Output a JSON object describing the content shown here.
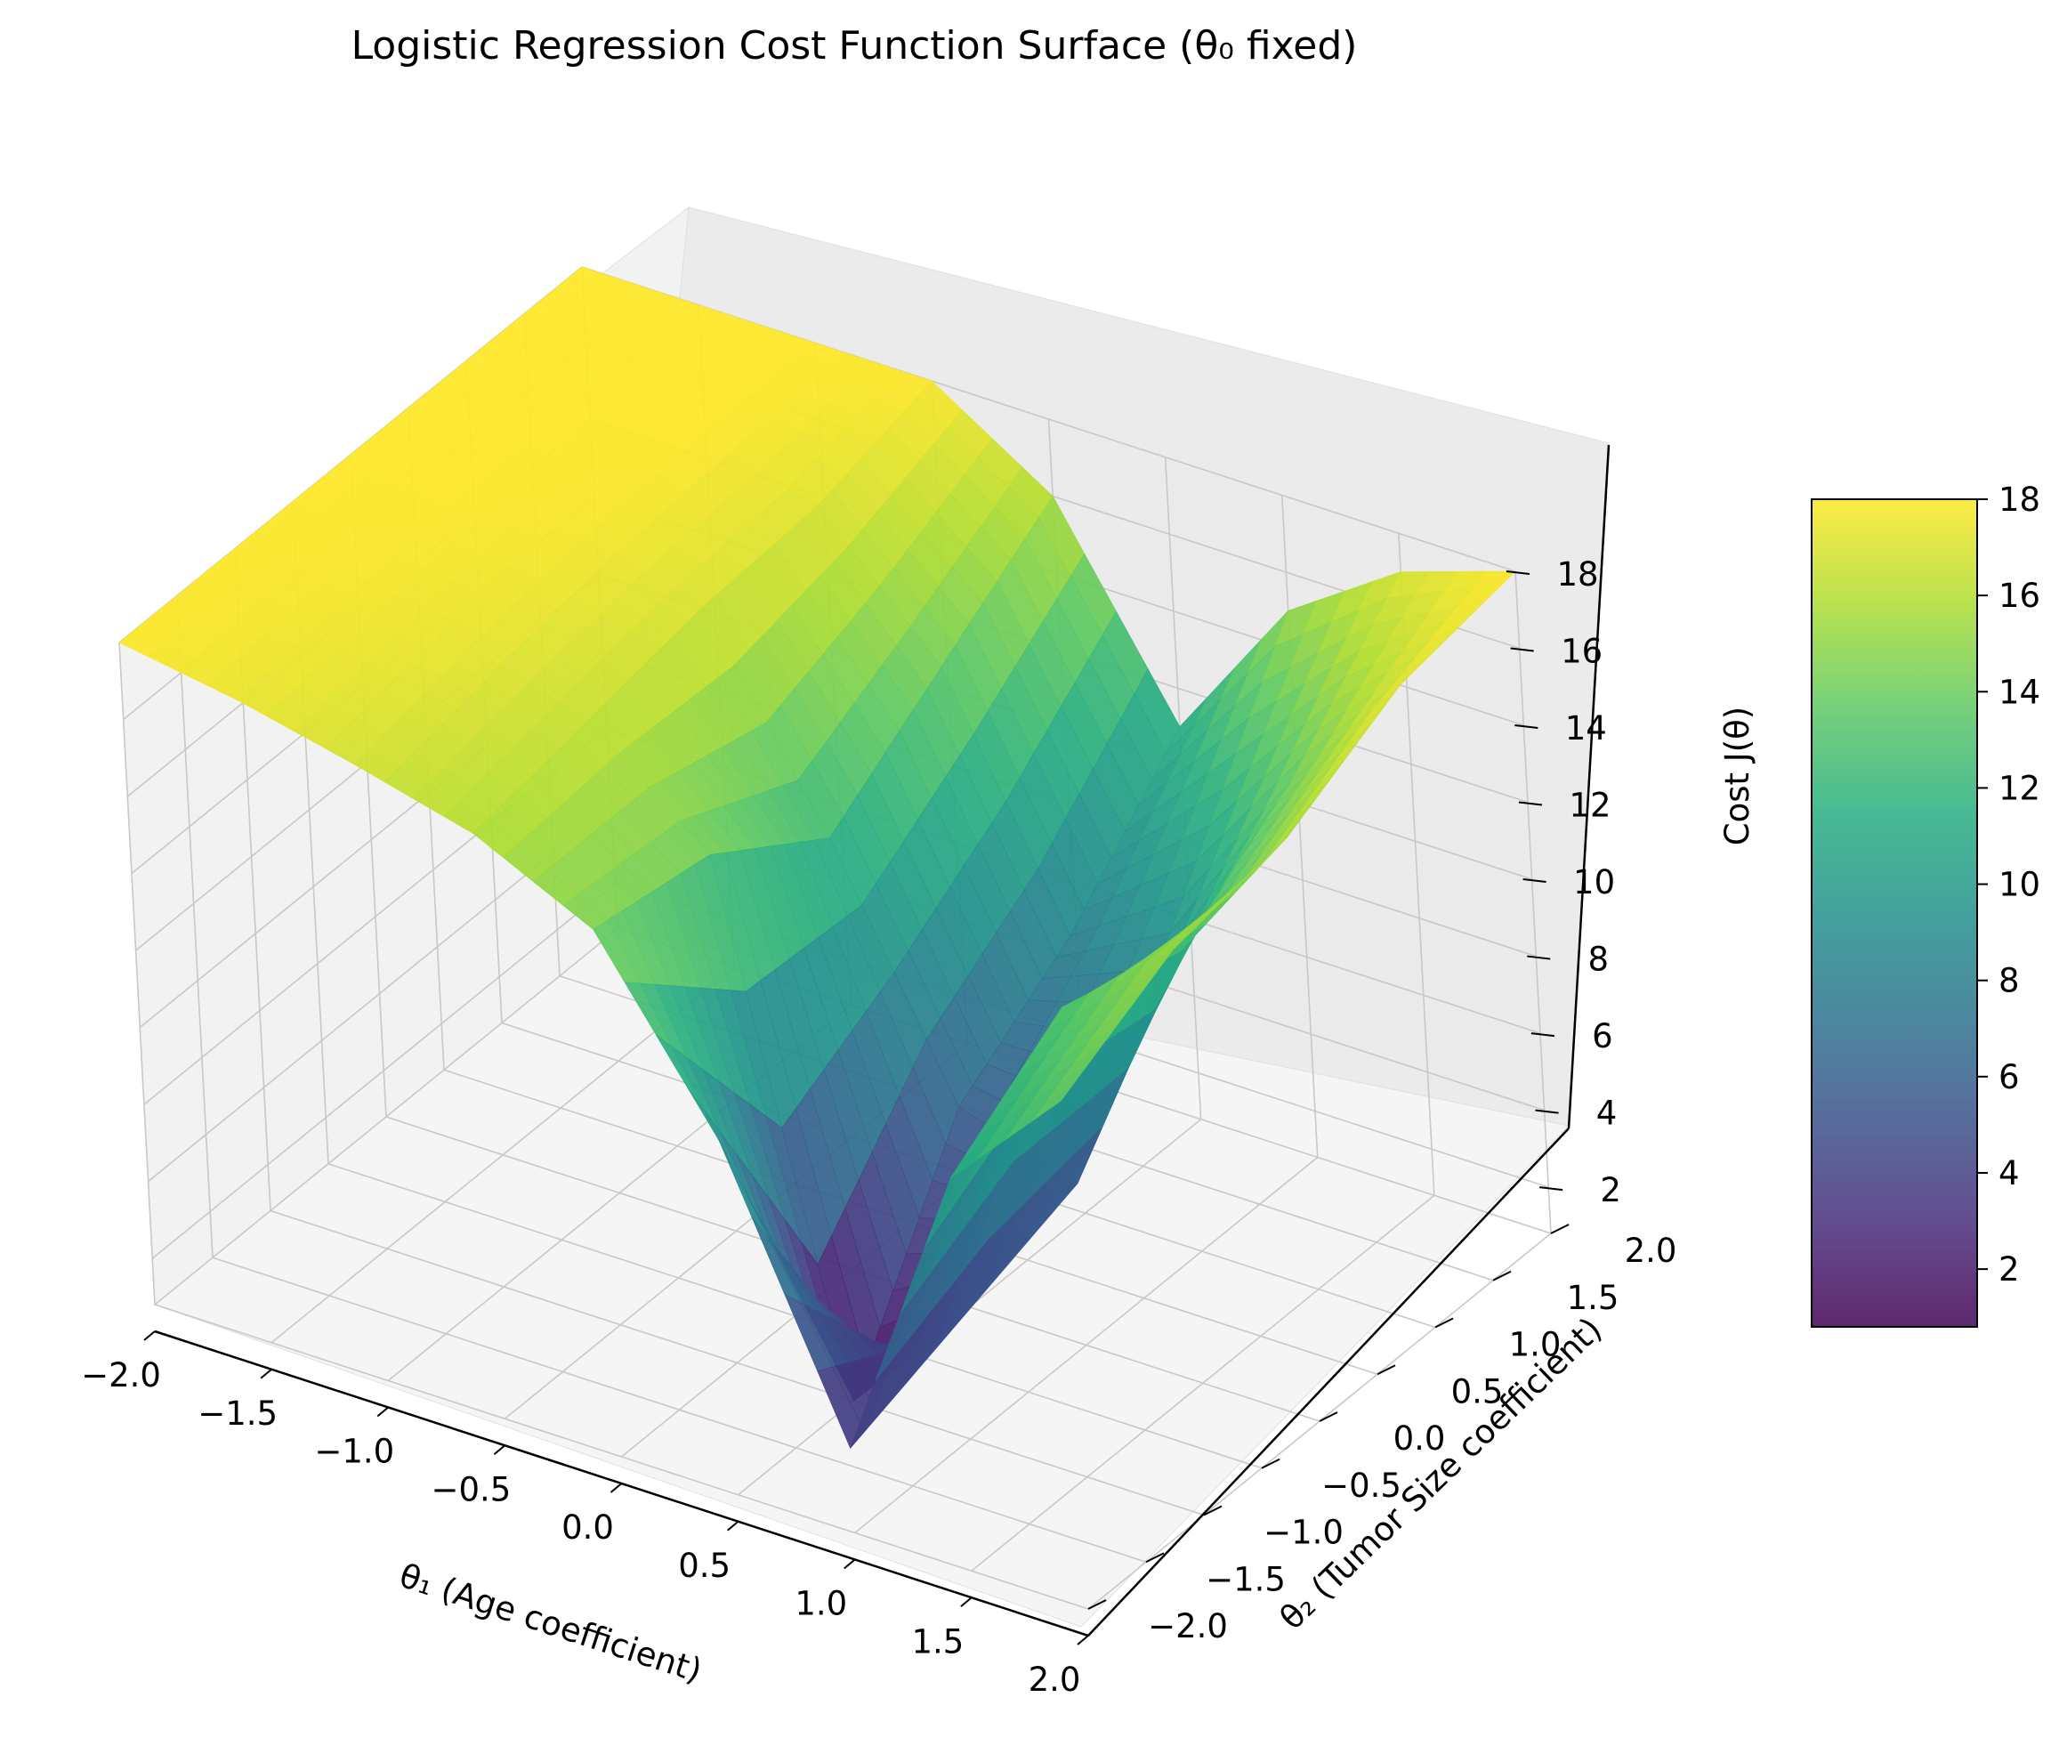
{
  "chart_data": {
    "type": "surface3d",
    "title": "Logistic Regression Cost Function Surface (θ₀ fixed)",
    "xlabel": "θ₁ (Age coefficient)",
    "ylabel": "θ₂ (Tumor Size coefficient)",
    "zlabel": "Cost J(θ)",
    "xlim": [
      -2.0,
      2.0
    ],
    "ylim": [
      -2.0,
      2.0
    ],
    "zlim": [
      0.8,
      18.0
    ],
    "colormap": "viridis",
    "grid": true,
    "x_ticks": [
      "−2.0",
      "−1.5",
      "−1.0",
      "−0.5",
      "0.0",
      "0.5",
      "1.0",
      "1.5",
      "2.0"
    ],
    "y_ticks": [
      "−2.0",
      "−1.5",
      "−1.0",
      "−0.5",
      "0.0",
      "0.5",
      "1.0",
      "1.5",
      "2.0"
    ],
    "z_ticks": [
      "2",
      "4",
      "6",
      "8",
      "10",
      "12",
      "14",
      "16",
      "18"
    ],
    "colorbar_ticks": [
      "2",
      "4",
      "6",
      "8",
      "10",
      "12",
      "14",
      "16",
      "18"
    ],
    "colorbar_range": [
      0.8,
      18.0
    ],
    "surface_min": {
      "x": 0.45,
      "y": -1.0,
      "z": 0.8
    },
    "surface_max_plateau": 18.0,
    "surface_rows": [
      {
        "y": -2.0,
        "z": [
          18.0,
          17.5,
          16.8,
          16.0,
          14.5,
          10.0,
          3.0,
          11.0,
          14.0
        ]
      },
      {
        "y": -1.0,
        "z": [
          18.0,
          17.8,
          17.4,
          16.5,
          14.0,
          0.8,
          4.0,
          13.0,
          15.5
        ]
      },
      {
        "y": 0.0,
        "z": [
          18.0,
          18.0,
          17.8,
          17.0,
          12.0,
          6.0,
          5.0,
          12.0,
          16.0
        ]
      },
      {
        "y": 1.0,
        "z": [
          18.0,
          18.0,
          18.0,
          17.2,
          14.0,
          8.0,
          10.0,
          14.0,
          17.5
        ]
      },
      {
        "y": 2.0,
        "z": [
          18.0,
          18.0,
          18.0,
          18.0,
          16.0,
          11.0,
          15.0,
          17.0,
          18.0
        ]
      }
    ]
  }
}
